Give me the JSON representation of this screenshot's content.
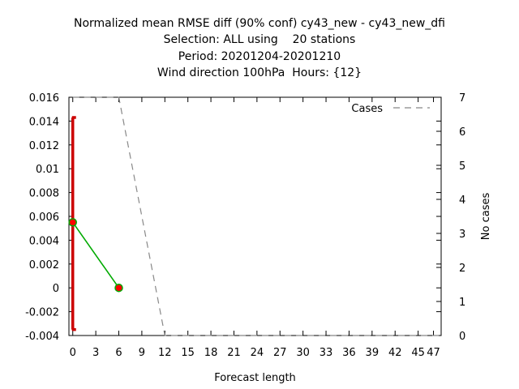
{
  "chart_data": {
    "type": "line",
    "title_lines": [
      "Normalized mean RMSE diff (90% conf) cy43_new - cy43_new_dfi",
      "Selection: ALL using    20 stations",
      "Period: 20201204-20201210",
      "Wind direction 100hPa  Hours: {12}"
    ],
    "xlabel": "Forecast length",
    "ylabel": "",
    "y2label": "No cases",
    "xlim": [
      -0.5,
      48
    ],
    "ylim": [
      -0.004,
      0.016
    ],
    "y2lim": [
      0,
      7
    ],
    "x_ticks": [
      0,
      3,
      6,
      9,
      12,
      15,
      18,
      21,
      24,
      27,
      30,
      33,
      36,
      39,
      42,
      45,
      47
    ],
    "y_ticks": [
      "0.016",
      "0.014",
      "0.012",
      "0.01",
      "0.008",
      "0.006",
      "0.004",
      "0.002",
      "0",
      "-0.002",
      "-0.004"
    ],
    "y2_ticks": [
      "7",
      "6",
      "5",
      "4",
      "3",
      "2",
      "1",
      "0"
    ],
    "series": [
      {
        "name": "",
        "color": "#00aa00",
        "marker_color": "#ff0000",
        "x": [
          0,
          6
        ],
        "y": [
          0.0055,
          0.0
        ]
      },
      {
        "name": "Cases",
        "axis": "y2",
        "style": "dashed",
        "color": "#888888",
        "x": [
          0,
          3,
          6,
          12,
          15,
          18,
          21,
          24,
          27,
          30,
          33,
          36,
          39,
          42,
          45,
          48
        ],
        "y": [
          7,
          7,
          7,
          0,
          0,
          0,
          0,
          0,
          0,
          0,
          0,
          0,
          0,
          0,
          0,
          0
        ]
      }
    ],
    "error_bars": [
      {
        "x": 0,
        "low": -0.0035,
        "high": 0.0143,
        "color": "#cc0000"
      },
      {
        "x": 6,
        "low": 0.0,
        "high": 0.0,
        "color": "#cc0000"
      }
    ],
    "legend_position": "top-right",
    "grid": false
  }
}
